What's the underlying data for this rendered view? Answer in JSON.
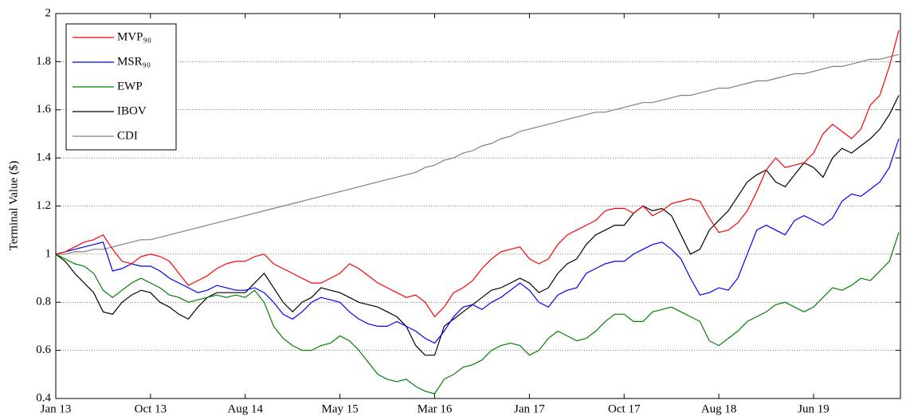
{
  "chart_data": {
    "type": "line",
    "y_label": "Terminal Value ($)",
    "categories": [
      "Jan 13",
      null,
      null,
      null,
      null,
      null,
      null,
      null,
      null,
      null,
      "Oct 13",
      null,
      null,
      null,
      null,
      null,
      null,
      null,
      null,
      null,
      "Aug 14",
      null,
      null,
      null,
      null,
      null,
      null,
      null,
      null,
      null,
      "May 15",
      null,
      null,
      null,
      null,
      null,
      null,
      null,
      null,
      null,
      "Mar 16",
      null,
      null,
      null,
      null,
      null,
      null,
      null,
      null,
      null,
      "Jan 17",
      null,
      null,
      null,
      null,
      null,
      null,
      null,
      null,
      null,
      "Oct 17",
      null,
      null,
      null,
      null,
      null,
      null,
      null,
      null,
      null,
      "Aug 18",
      null,
      null,
      null,
      null,
      null,
      null,
      null,
      null,
      null,
      "Jun 19",
      null,
      null,
      null,
      null,
      null,
      null,
      null,
      null,
      null
    ],
    "ylim": [
      0.4,
      2
    ],
    "yticks": [
      0.4,
      0.6,
      0.8,
      1,
      1.2,
      1.4,
      1.6,
      1.8,
      2
    ],
    "grid": true,
    "legend": "upper-left",
    "series": [
      {
        "name": "MVP₉₀",
        "color": "#ff0000",
        "values": [
          1.0,
          1.01,
          1.03,
          1.05,
          1.06,
          1.08,
          1.02,
          0.97,
          0.96,
          0.99,
          1.0,
          0.99,
          0.97,
          0.92,
          0.87,
          0.89,
          0.91,
          0.94,
          0.96,
          0.97,
          0.97,
          0.99,
          1.0,
          0.96,
          0.94,
          0.92,
          0.9,
          0.88,
          0.88,
          0.9,
          0.92,
          0.96,
          0.94,
          0.91,
          0.88,
          0.86,
          0.84,
          0.82,
          0.83,
          0.8,
          0.74,
          0.78,
          0.84,
          0.86,
          0.89,
          0.94,
          0.98,
          1.01,
          1.02,
          1.03,
          0.98,
          0.96,
          0.98,
          1.04,
          1.08,
          1.1,
          1.12,
          1.14,
          1.18,
          1.19,
          1.19,
          1.17,
          1.2,
          1.16,
          1.18,
          1.21,
          1.22,
          1.23,
          1.22,
          1.15,
          1.09,
          1.1,
          1.13,
          1.18,
          1.26,
          1.35,
          1.4,
          1.36,
          1.37,
          1.38,
          1.42,
          1.5,
          1.54,
          1.51,
          1.48,
          1.52,
          1.62,
          1.66,
          1.78,
          1.93
        ]
      },
      {
        "name": "MSR₉₀",
        "color": "#0000ff",
        "values": [
          1.0,
          1.01,
          1.02,
          1.03,
          1.04,
          1.05,
          0.93,
          0.94,
          0.96,
          0.95,
          0.95,
          0.93,
          0.9,
          0.88,
          0.86,
          0.84,
          0.85,
          0.87,
          0.86,
          0.85,
          0.85,
          0.86,
          0.84,
          0.8,
          0.75,
          0.73,
          0.76,
          0.8,
          0.82,
          0.81,
          0.8,
          0.76,
          0.73,
          0.71,
          0.7,
          0.7,
          0.72,
          0.7,
          0.68,
          0.65,
          0.63,
          0.68,
          0.74,
          0.78,
          0.79,
          0.77,
          0.8,
          0.82,
          0.85,
          0.88,
          0.85,
          0.8,
          0.78,
          0.83,
          0.85,
          0.86,
          0.92,
          0.94,
          0.96,
          0.97,
          0.97,
          1.0,
          1.02,
          1.04,
          1.05,
          1.02,
          0.98,
          0.9,
          0.83,
          0.84,
          0.86,
          0.85,
          0.9,
          1.0,
          1.1,
          1.12,
          1.1,
          1.08,
          1.14,
          1.16,
          1.14,
          1.12,
          1.15,
          1.22,
          1.25,
          1.24,
          1.27,
          1.3,
          1.36,
          1.48
        ]
      },
      {
        "name": "EWP",
        "color": "#008000",
        "values": [
          1.0,
          0.98,
          0.96,
          0.95,
          0.92,
          0.85,
          0.82,
          0.85,
          0.88,
          0.9,
          0.88,
          0.86,
          0.83,
          0.82,
          0.8,
          0.81,
          0.82,
          0.83,
          0.82,
          0.83,
          0.82,
          0.85,
          0.8,
          0.7,
          0.65,
          0.62,
          0.6,
          0.6,
          0.62,
          0.63,
          0.66,
          0.64,
          0.6,
          0.55,
          0.5,
          0.48,
          0.47,
          0.48,
          0.45,
          0.43,
          0.42,
          0.48,
          0.5,
          0.53,
          0.54,
          0.56,
          0.6,
          0.62,
          0.63,
          0.62,
          0.58,
          0.6,
          0.65,
          0.68,
          0.66,
          0.64,
          0.65,
          0.68,
          0.72,
          0.75,
          0.75,
          0.72,
          0.72,
          0.76,
          0.77,
          0.78,
          0.76,
          0.74,
          0.72,
          0.64,
          0.62,
          0.65,
          0.68,
          0.72,
          0.74,
          0.76,
          0.79,
          0.8,
          0.78,
          0.76,
          0.78,
          0.82,
          0.86,
          0.85,
          0.87,
          0.9,
          0.89,
          0.93,
          0.97,
          1.09
        ]
      },
      {
        "name": "IBOV",
        "color": "#000000",
        "values": [
          1.0,
          0.97,
          0.92,
          0.88,
          0.84,
          0.76,
          0.75,
          0.8,
          0.83,
          0.85,
          0.84,
          0.8,
          0.78,
          0.75,
          0.73,
          0.78,
          0.82,
          0.84,
          0.84,
          0.84,
          0.84,
          0.88,
          0.92,
          0.86,
          0.8,
          0.76,
          0.8,
          0.82,
          0.86,
          0.85,
          0.84,
          0.82,
          0.8,
          0.79,
          0.78,
          0.76,
          0.74,
          0.7,
          0.62,
          0.58,
          0.58,
          0.7,
          0.73,
          0.76,
          0.79,
          0.82,
          0.85,
          0.86,
          0.88,
          0.9,
          0.88,
          0.84,
          0.86,
          0.92,
          0.96,
          0.98,
          1.04,
          1.08,
          1.1,
          1.12,
          1.12,
          1.17,
          1.2,
          1.18,
          1.19,
          1.16,
          1.08,
          1.0,
          1.02,
          1.1,
          1.14,
          1.18,
          1.24,
          1.3,
          1.33,
          1.35,
          1.3,
          1.28,
          1.33,
          1.38,
          1.36,
          1.32,
          1.4,
          1.44,
          1.42,
          1.45,
          1.48,
          1.52,
          1.58,
          1.66
        ]
      },
      {
        "name": "CDI",
        "color": "#808080",
        "values": [
          1.0,
          1.0,
          1.01,
          1.01,
          1.02,
          1.02,
          1.03,
          1.04,
          1.05,
          1.06,
          1.06,
          1.07,
          1.08,
          1.09,
          1.1,
          1.11,
          1.12,
          1.13,
          1.14,
          1.15,
          1.16,
          1.17,
          1.18,
          1.19,
          1.2,
          1.21,
          1.22,
          1.23,
          1.24,
          1.25,
          1.26,
          1.27,
          1.28,
          1.29,
          1.3,
          1.31,
          1.32,
          1.33,
          1.34,
          1.36,
          1.37,
          1.39,
          1.4,
          1.42,
          1.43,
          1.45,
          1.46,
          1.48,
          1.49,
          1.51,
          1.52,
          1.53,
          1.54,
          1.55,
          1.56,
          1.57,
          1.58,
          1.59,
          1.59,
          1.6,
          1.61,
          1.62,
          1.63,
          1.63,
          1.64,
          1.65,
          1.66,
          1.66,
          1.67,
          1.68,
          1.69,
          1.69,
          1.7,
          1.71,
          1.72,
          1.72,
          1.73,
          1.74,
          1.75,
          1.75,
          1.76,
          1.77,
          1.78,
          1.78,
          1.79,
          1.8,
          1.81,
          1.81,
          1.82,
          1.83
        ]
      }
    ]
  }
}
